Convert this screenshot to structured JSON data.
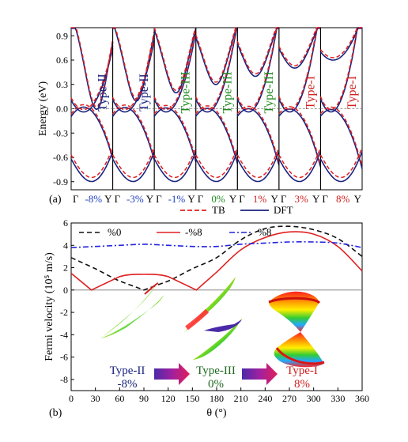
{
  "chart_data": [
    {
      "panel_label": "(a)",
      "type": "line",
      "ylabel": "Energy (eV)",
      "ylim": [
        -1.0,
        1.0
      ],
      "yticks": [
        "0.9",
        "0.6",
        "0.3",
        "0.0",
        "-0.3",
        "-0.6",
        "-0.9"
      ],
      "ytick_values": [
        0.9,
        0.6,
        0.3,
        0.0,
        -0.3,
        -0.6,
        -0.9
      ],
      "k_start": "Γ",
      "k_end": "Y",
      "legend": {
        "tb": "TB",
        "dft": "DFT",
        "placement": "bottom"
      },
      "colors": {
        "tb": "#e02020",
        "dft": "#1a237e",
        "zero": "#808080"
      },
      "subpanels": [
        {
          "strain": "-8%",
          "type_label": "Type-II",
          "label_color": "#1a237e",
          "strain_color": "#1f3fbf"
        },
        {
          "strain": "-3%",
          "type_label": "Type-II",
          "label_color": "#1a237e",
          "strain_color": "#1f3fbf"
        },
        {
          "strain": "-1%",
          "type_label": "Type-III",
          "label_color": "#1f8a1f",
          "strain_color": "#1f3fbf"
        },
        {
          "strain": "0%",
          "type_label": "Type-III",
          "label_color": "#1f8a1f",
          "strain_color": "#1f8a1f"
        },
        {
          "strain": "1%",
          "type_label": "Type-III",
          "label_color": "#1f8a1f",
          "strain_color": "#d02020"
        },
        {
          "strain": "3%",
          "type_label": "Type-I",
          "label_color": "#d02020",
          "strain_color": "#d02020"
        },
        {
          "strain": "8%",
          "type_label": "Type-I",
          "label_color": "#d02020",
          "strain_color": "#d02020"
        }
      ]
    },
    {
      "panel_label": "(b)",
      "type": "line",
      "xlabel": "θ (°)",
      "ylabel": "Fermi velocity (10⁵ m/s)",
      "xlim": [
        0,
        360
      ],
      "ylim": [
        -9,
        6
      ],
      "xticks": [
        0,
        30,
        60,
        90,
        120,
        150,
        180,
        210,
        240,
        270,
        300,
        330,
        360
      ],
      "yticks": [
        6,
        4,
        2,
        0,
        -2,
        -4,
        -6,
        -8
      ],
      "legend_placement": "top",
      "series": [
        {
          "name": "%0",
          "style": "dash",
          "color": "#111111",
          "x": [
            0,
            30,
            60,
            90,
            120,
            150,
            180,
            210,
            240,
            270,
            300,
            330,
            360
          ],
          "values": [
            2.9,
            1.9,
            0.8,
            0.0,
            0.8,
            1.9,
            2.9,
            4.5,
            5.5,
            5.7,
            5.4,
            4.6,
            3.0
          ]
        },
        {
          "name": "-%8",
          "style": "solid",
          "color": "#e02020",
          "x": [
            0,
            25,
            60,
            90,
            120,
            155,
            180,
            210,
            240,
            270,
            300,
            330,
            360
          ],
          "values": [
            1.5,
            0.0,
            1.2,
            1.4,
            1.2,
            0.0,
            1.6,
            3.6,
            4.7,
            5.2,
            5.0,
            3.9,
            1.7
          ]
        },
        {
          "name": "%8",
          "style": "dashdot",
          "color": "#2222dd",
          "x": [
            0,
            30,
            60,
            90,
            120,
            150,
            180,
            210,
            240,
            270,
            300,
            330,
            360
          ],
          "values": [
            3.8,
            3.9,
            4.0,
            4.1,
            4.0,
            3.9,
            3.9,
            4.1,
            4.2,
            4.3,
            4.3,
            4.2,
            3.8
          ]
        }
      ],
      "annotations": [
        {
          "title": "Type-II",
          "sub": "-8%",
          "title_color": "#1a237e",
          "sub_color": "#1a237e"
        },
        {
          "title": "Type-III",
          "sub": "0%",
          "title_color": "#1f6a1f",
          "sub_color": "#1f6a1f"
        },
        {
          "title": "Type-I",
          "sub": "8%",
          "title_color": "#d02020",
          "sub_color": "#d02020"
        }
      ]
    }
  ]
}
